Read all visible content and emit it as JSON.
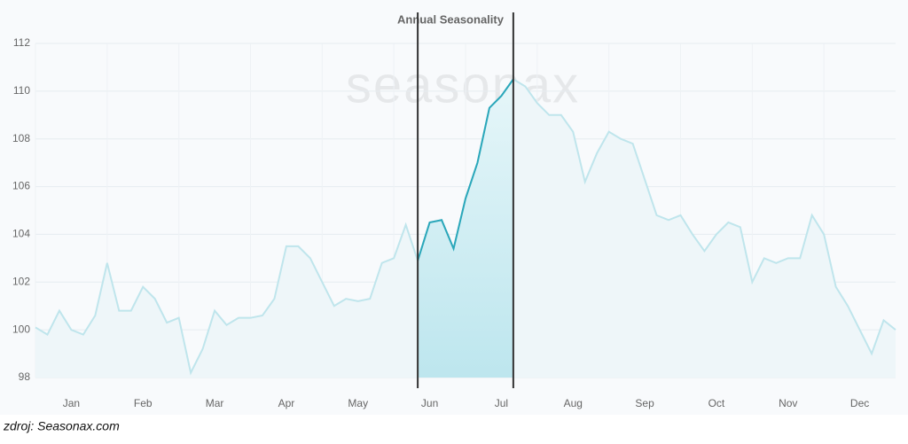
{
  "chart_data": {
    "type": "line",
    "title": "Annual Seasonality",
    "watermark": "seasonax",
    "source": "zdroj: Seasonax.com",
    "xtick_labels": [
      "Jan",
      "Feb",
      "Mar",
      "Apr",
      "May",
      "Jun",
      "Jul",
      "Aug",
      "Sep",
      "Oct",
      "Nov",
      "Dec"
    ],
    "series": [
      {
        "color": "#bfe5ec",
        "highlight_color": "#2aa7ba",
        "values": [
          100.1,
          99.8,
          100.8,
          100.0,
          99.8,
          100.6,
          102.8,
          100.8,
          100.8,
          101.8,
          101.3,
          100.3,
          100.5,
          98.2,
          99.2,
          100.8,
          100.2,
          100.5,
          100.5,
          100.6,
          101.3,
          103.5,
          103.5,
          103.0,
          102.0,
          101.0,
          101.3,
          101.2,
          101.3,
          102.8,
          103.0,
          104.4,
          102.9,
          104.5,
          104.6,
          103.4,
          105.5,
          107.0,
          109.3,
          109.8,
          110.5,
          110.2,
          109.5,
          109.0,
          109.0,
          108.3,
          106.2,
          107.4,
          108.3,
          108.0,
          107.8,
          106.3,
          104.8,
          104.6,
          104.8,
          104.0,
          103.3,
          104.0,
          104.5,
          104.3,
          102.0,
          103.0,
          102.8,
          103.0,
          103.0,
          104.8,
          104.0,
          101.8,
          101.0,
          100.0,
          99.0,
          100.4,
          100.0
        ]
      }
    ],
    "highlight": {
      "start": 32,
      "end": 40
    },
    "ylim": [
      98,
      112
    ],
    "yticks": [
      98,
      100,
      102,
      104,
      106,
      108,
      110,
      112
    ],
    "grid": true
  }
}
